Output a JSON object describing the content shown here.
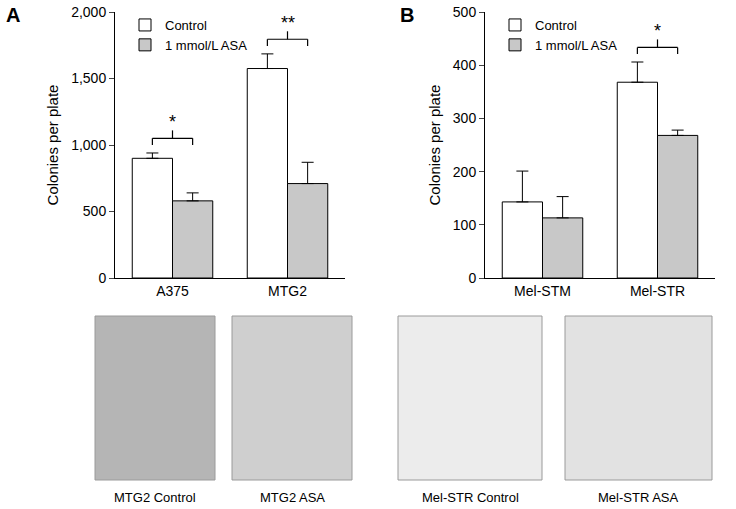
{
  "chart_data": [
    {
      "type": "bar",
      "panel": "A",
      "ylabel": "Colonies per plate",
      "categories": [
        "A375",
        "MTG2"
      ],
      "series": [
        {
          "name": "Control",
          "color": "#ffffff",
          "values": [
            900,
            1575
          ],
          "errors": [
            40,
            110
          ]
        },
        {
          "name": "1 mmol/L ASA",
          "color": "#c8c8c8",
          "values": [
            580,
            710
          ],
          "errors": [
            60,
            160
          ]
        }
      ],
      "ylim": [
        0,
        2000
      ],
      "yticks": [
        0,
        500,
        {
          "value": 1000,
          "label": "1,000"
        },
        {
          "value": 1500,
          "label": "1,500"
        },
        {
          "value": 2000,
          "label": "2,000"
        }
      ],
      "legend": "upper left",
      "significance": [
        {
          "category": "A375",
          "text": "*"
        },
        {
          "category": "MTG2",
          "text": "**"
        }
      ],
      "image_captions": [
        "MTG2 Control",
        "MTG2 ASA"
      ]
    },
    {
      "type": "bar",
      "panel": "B",
      "ylabel": "Colonies per plate",
      "categories": [
        "Mel-STM",
        "Mel-STR"
      ],
      "series": [
        {
          "name": "Control",
          "color": "#ffffff",
          "values": [
            143,
            368
          ],
          "errors": [
            58,
            38
          ]
        },
        {
          "name": "1 mmol/L ASA",
          "color": "#c8c8c8",
          "values": [
            113,
            268
          ],
          "errors": [
            40,
            10
          ]
        }
      ],
      "ylim": [
        0,
        500
      ],
      "yticks": [
        0,
        100,
        200,
        300,
        400,
        500
      ],
      "legend": "upper left",
      "significance": [
        {
          "category": "Mel-STR",
          "text": "*"
        }
      ],
      "image_captions": [
        "Mel-STR Control",
        "Mel-STR ASA"
      ]
    }
  ]
}
